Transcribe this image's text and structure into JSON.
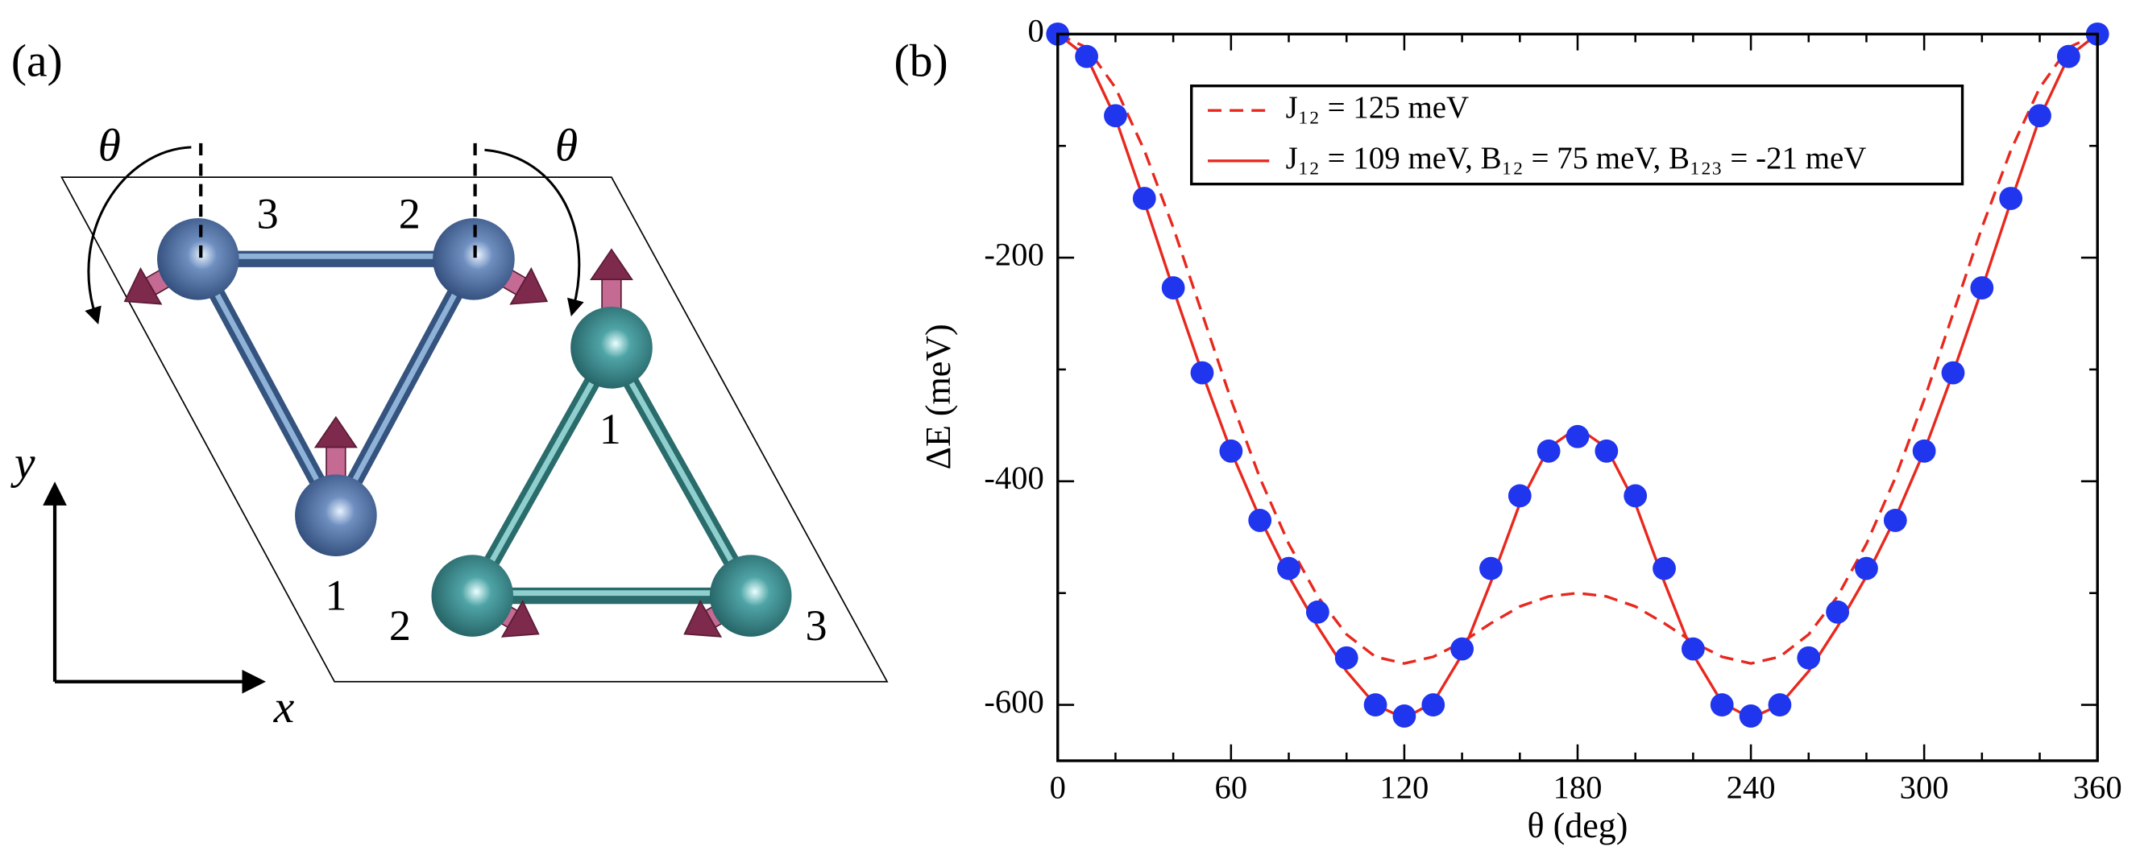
{
  "panel_a": {
    "label": "(a)",
    "angle_labels": [
      "θ",
      "θ"
    ],
    "atom_labels": [
      "3",
      "2",
      "1",
      "1",
      "2",
      "3"
    ],
    "axis_labels": [
      "y",
      "x"
    ]
  },
  "chart_data": {
    "type": "line",
    "label": "(b)",
    "x_label": "θ (deg)",
    "y_label": "ΔE (meV)",
    "x": [
      0,
      10,
      20,
      30,
      40,
      50,
      60,
      70,
      80,
      90,
      100,
      110,
      120,
      130,
      140,
      150,
      160,
      170,
      180,
      190,
      200,
      210,
      220,
      230,
      240,
      250,
      260,
      270,
      280,
      290,
      300,
      310,
      320,
      330,
      340,
      350,
      360
    ],
    "xlim": [
      0,
      360
    ],
    "xticks": [
      0,
      60,
      120,
      180,
      240,
      300,
      360
    ],
    "xminorticks": [
      20,
      40,
      80,
      100,
      140,
      160,
      200,
      220,
      260,
      280,
      320,
      340
    ],
    "ylim": [
      -650,
      0
    ],
    "yticks": [
      0,
      -200,
      -400,
      -600
    ],
    "yminorticks": [
      -100,
      -300,
      -500
    ],
    "series": [
      {
        "name": "J₁₂ = 125 meV",
        "color": "#e8281e",
        "style": "dashed",
        "values": [
          0,
          -12,
          -48,
          -104,
          -173,
          -250,
          -327,
          -397,
          -456,
          -503,
          -537,
          -557,
          -563,
          -557,
          -544,
          -527,
          -512,
          -503,
          -500,
          -503,
          -512,
          -527,
          -544,
          -557,
          -563,
          -557,
          -537,
          -503,
          -456,
          -397,
          -327,
          -250,
          -173,
          -104,
          -48,
          -12,
          0
        ]
      },
      {
        "name": "J₁₂ = 109 meV, B₁₂ = 75 meV, B₁₂₃ = -21 meV",
        "color": "#e8281e",
        "style": "solid",
        "values": [
          0,
          -20,
          -75,
          -150,
          -228,
          -303,
          -373,
          -433,
          -485,
          -530,
          -570,
          -600,
          -612,
          -598,
          -555,
          -490,
          -420,
          -370,
          -352,
          -370,
          -420,
          -490,
          -555,
          -598,
          -612,
          -600,
          -570,
          -530,
          -485,
          -433,
          -373,
          -303,
          -228,
          -150,
          -75,
          -20,
          0
        ]
      }
    ],
    "markers": {
      "color": "#1f35ee",
      "values": [
        0,
        -20,
        -73,
        -147,
        -227,
        -303,
        -373,
        -435,
        -478,
        -517,
        -558,
        -600,
        -610,
        -600,
        -550,
        -478,
        -413,
        -373,
        -360,
        -373,
        -413,
        -478,
        -550,
        -600,
        -610,
        -600,
        -558,
        -517,
        -478,
        -435,
        -373,
        -303,
        -227,
        -147,
        -73,
        -20,
        0
      ]
    }
  }
}
